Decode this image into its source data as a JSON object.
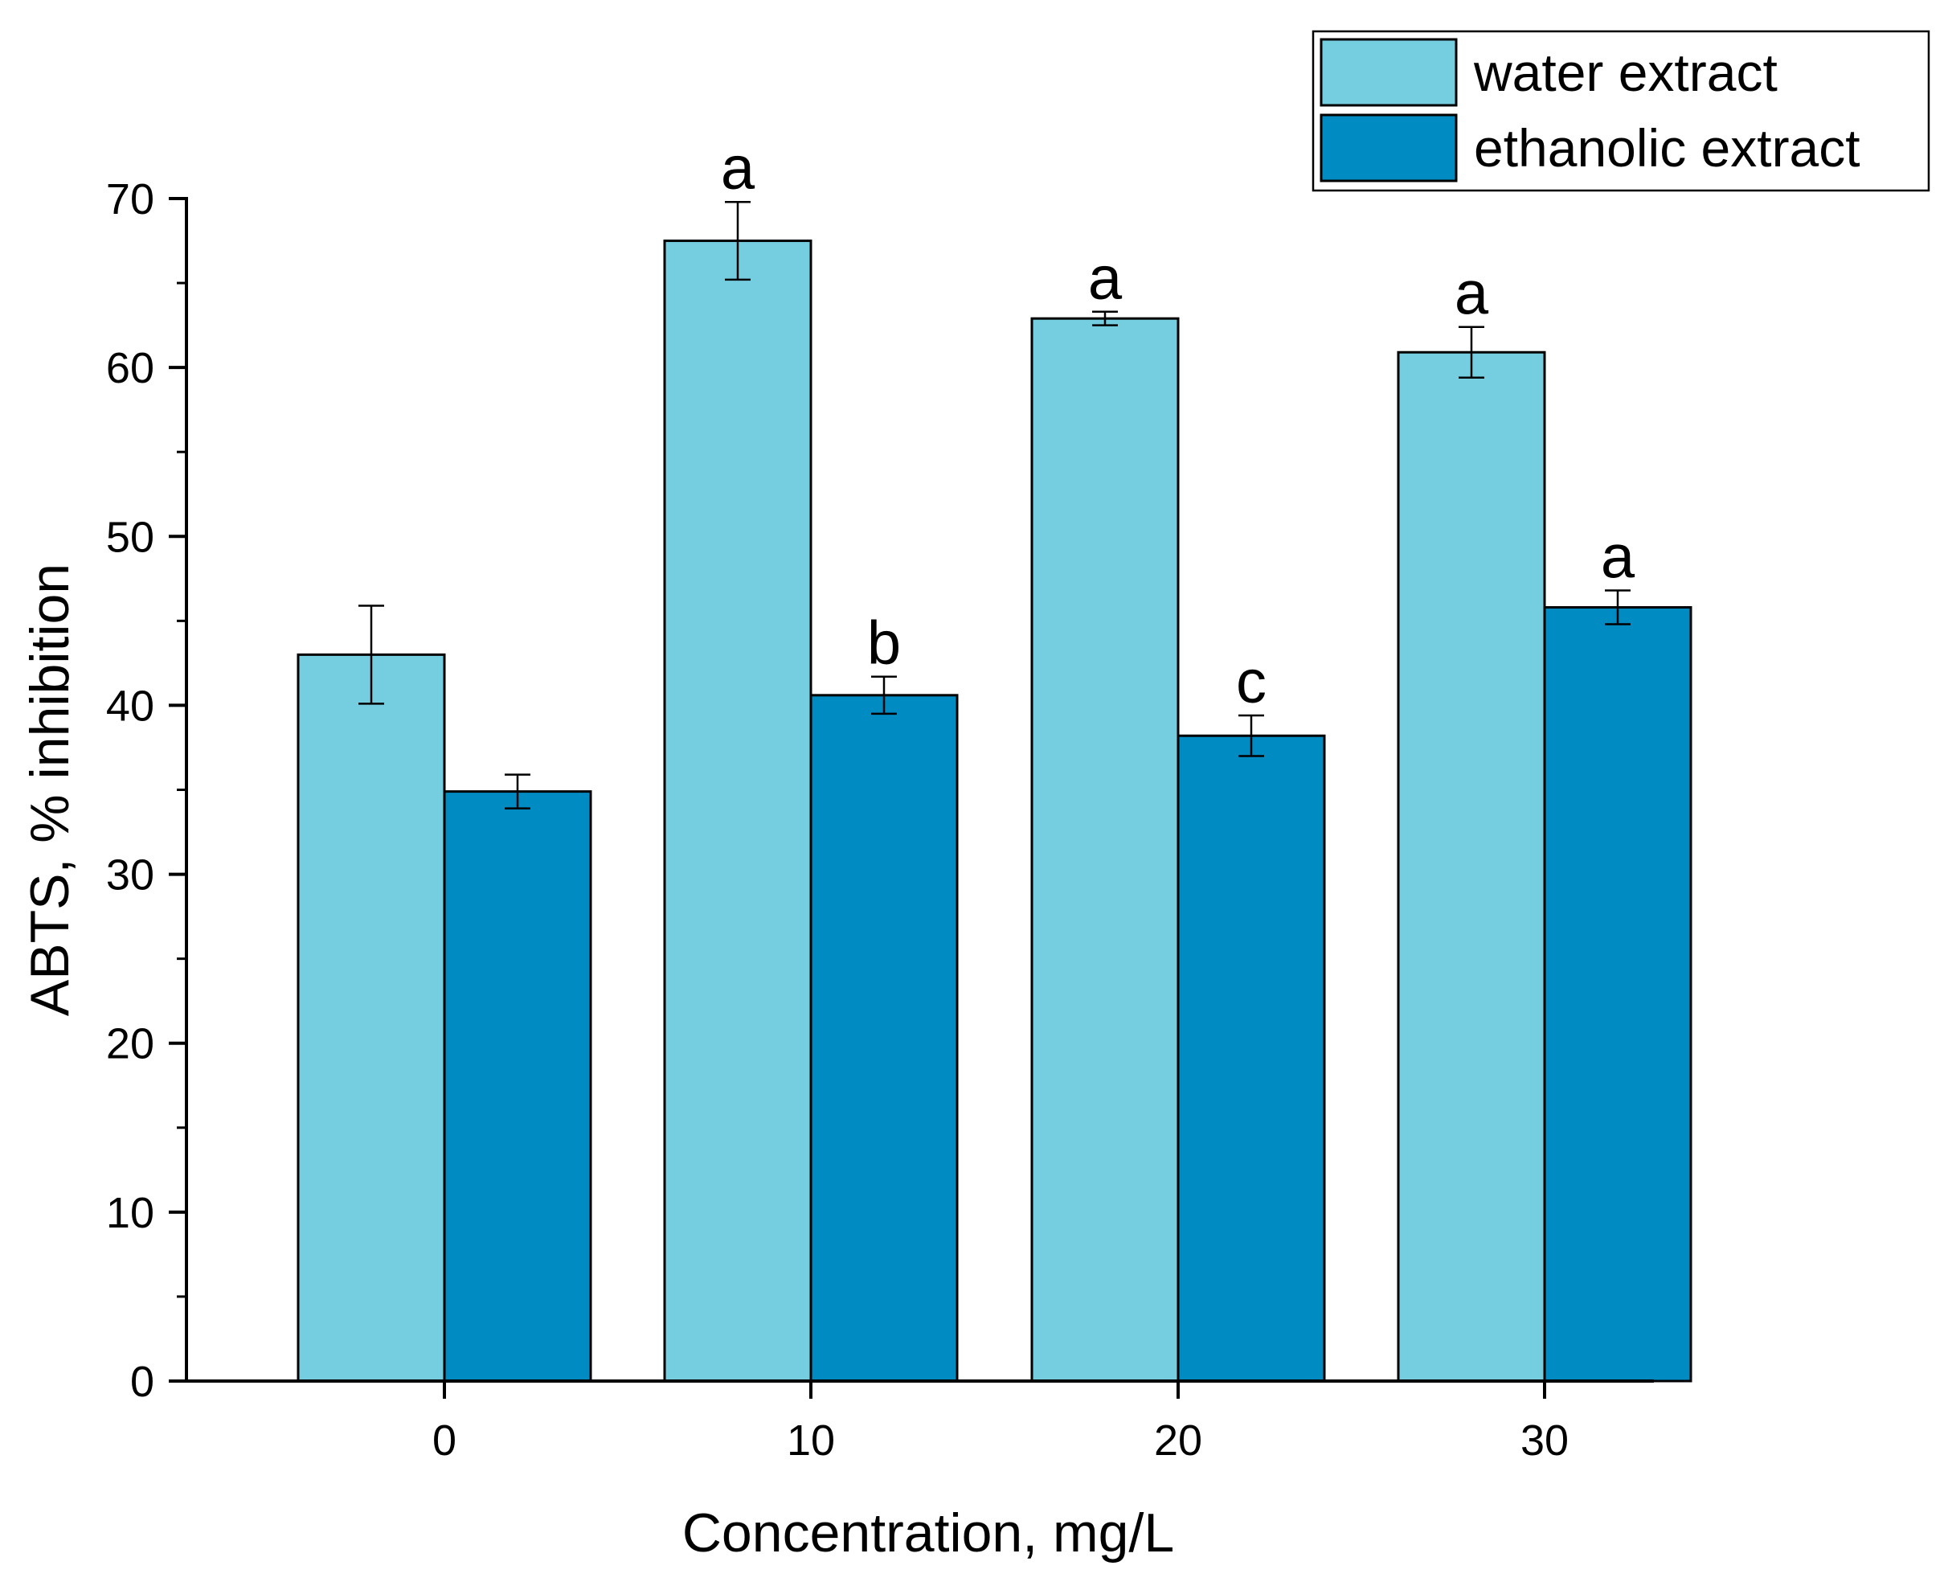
{
  "chart_data": {
    "type": "bar",
    "title": "",
    "xlabel": "Concentration, mg/L",
    "ylabel": "ABTS, % inhibition",
    "categories": [
      "0",
      "10",
      "20",
      "30"
    ],
    "ylim": [
      0,
      70
    ],
    "yticks": [
      0,
      10,
      20,
      30,
      40,
      50,
      60,
      70
    ],
    "ytick_labels": [
      "0",
      "10",
      "20",
      "30",
      "40",
      "50",
      "60",
      "70"
    ],
    "legend_position": "top-right",
    "series": [
      {
        "name": "water extract",
        "color": "#75cee0",
        "values": [
          43.0,
          67.5,
          62.9,
          60.9
        ],
        "errors": [
          2.9,
          2.3,
          0.4,
          1.5
        ],
        "labels": [
          "",
          "a",
          "a",
          "a"
        ]
      },
      {
        "name": "ethanolic extract",
        "color": "#008bc2",
        "values": [
          34.9,
          40.6,
          38.2,
          45.8
        ],
        "errors": [
          1.0,
          1.1,
          1.2,
          1.0
        ],
        "labels": [
          "",
          "b",
          "c",
          "a"
        ]
      }
    ]
  }
}
